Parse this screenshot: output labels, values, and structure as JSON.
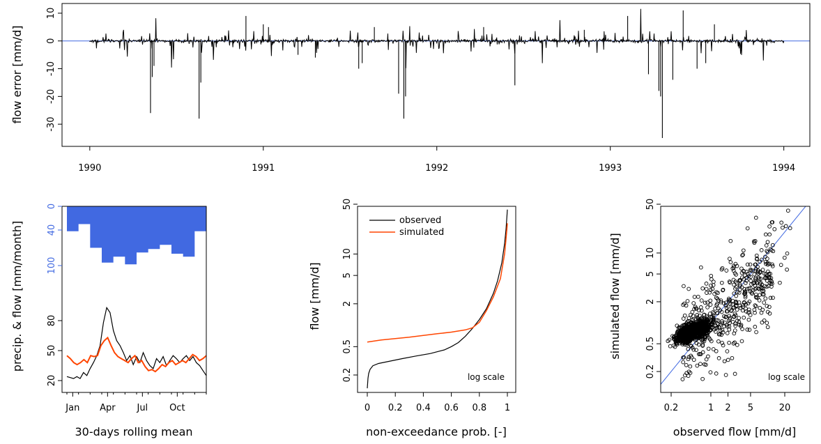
{
  "chart_data": [
    {
      "type": "line",
      "ylabel": "flow error [mm/d]",
      "xlim": [
        1989.84,
        1994.15
      ],
      "ylim": [
        -38,
        13.5
      ],
      "yticks": [
        10,
        0,
        -10,
        -20,
        -30
      ],
      "xticks": [
        "1990",
        "1991",
        "1992",
        "1993",
        "1994"
      ],
      "zero_line_color": "#4169E1",
      "line_color": "#000000",
      "spikes": [
        [
          1990.35,
          -26
        ],
        [
          1990.36,
          -13
        ],
        [
          1990.37,
          -9
        ],
        [
          1990.63,
          -28
        ],
        [
          1990.64,
          -15
        ],
        [
          1990.9,
          9
        ],
        [
          1991.0,
          6
        ],
        [
          1991.03,
          5
        ],
        [
          1991.2,
          -5
        ],
        [
          1991.3,
          -6
        ],
        [
          1991.55,
          -10
        ],
        [
          1991.57,
          -8
        ],
        [
          1991.64,
          5
        ],
        [
          1991.78,
          -19
        ],
        [
          1991.81,
          -28
        ],
        [
          1991.82,
          -20
        ],
        [
          1992.27,
          5
        ],
        [
          1992.45,
          -16
        ],
        [
          1992.85,
          4
        ],
        [
          1993.1,
          9
        ],
        [
          1993.22,
          -12
        ],
        [
          1993.28,
          -18
        ],
        [
          1993.29,
          -20
        ],
        [
          1993.3,
          -35
        ],
        [
          1993.36,
          -14
        ],
        [
          1993.42,
          11
        ],
        [
          1993.5,
          -10
        ],
        [
          1993.55,
          -8
        ],
        [
          1993.6,
          6
        ]
      ]
    },
    {
      "type": "area",
      "xlabel": "30-days rolling mean",
      "ylabel": "precip. & flow [mm/month]",
      "xticks": [
        "Jan",
        "Apr",
        "Jul",
        "Oct"
      ],
      "precip_ticks": [
        0,
        40,
        100
      ],
      "flow_ticks": [
        20,
        50,
        80
      ],
      "precip_color": "#4169E1",
      "precip_monthly": [
        42,
        30,
        70,
        95,
        85,
        98,
        78,
        72,
        65,
        80,
        85,
        42
      ],
      "series": [
        {
          "values": [
            24,
            23,
            22,
            24,
            22,
            28,
            25,
            32,
            38,
            45,
            55,
            78,
            93,
            88,
            70,
            60,
            55,
            48,
            40,
            45,
            36,
            44,
            38,
            48,
            40,
            35,
            32,
            42,
            38,
            44,
            35,
            40,
            45,
            42,
            38,
            42,
            45,
            40,
            44,
            38,
            35,
            30,
            25
          ],
          "color": "#000000"
        },
        {
          "values": [
            45,
            42,
            38,
            36,
            38,
            41,
            38,
            45,
            44,
            45,
            55,
            60,
            63,
            55,
            48,
            44,
            42,
            40,
            38,
            42,
            45,
            38,
            40,
            34,
            30,
            31,
            29,
            32,
            36,
            34,
            38,
            40,
            36,
            38,
            40,
            38,
            42,
            46,
            44,
            40,
            42,
            45
          ],
          "color": "#FF4500"
        }
      ]
    },
    {
      "type": "line",
      "xlabel": "non-exceedance prob. [-]",
      "ylabel": "flow [mm/d]",
      "xticks": [
        "0",
        "0.2",
        "0.4",
        "0.6",
        "0.8",
        "1"
      ],
      "yticks": [
        "0.2",
        "0.5",
        "2",
        "5",
        "10",
        "50"
      ],
      "note": "log scale",
      "series": [
        {
          "name": "observed",
          "color": "#000000",
          "x": [
            0,
            0.005,
            0.01,
            0.02,
            0.04,
            0.08,
            0.15,
            0.25,
            0.35,
            0.45,
            0.55,
            0.6,
            0.65,
            0.7,
            0.75,
            0.8,
            0.85,
            0.9,
            0.93,
            0.96,
            0.98,
            0.99,
            0.995,
            1
          ],
          "y": [
            0.13,
            0.18,
            0.21,
            0.24,
            0.27,
            0.29,
            0.31,
            0.34,
            0.37,
            0.4,
            0.45,
            0.5,
            0.57,
            0.7,
            0.9,
            1.2,
            1.7,
            2.8,
            4.2,
            7.5,
            14,
            22,
            30,
            42
          ]
        },
        {
          "name": "simulated",
          "color": "#FF4500",
          "x": [
            0,
            0.05,
            0.1,
            0.2,
            0.3,
            0.4,
            0.5,
            0.6,
            0.7,
            0.75,
            0.8,
            0.85,
            0.9,
            0.95,
            0.98,
            0.99,
            1
          ],
          "y": [
            0.58,
            0.6,
            0.62,
            0.65,
            0.68,
            0.72,
            0.76,
            0.8,
            0.86,
            0.92,
            1.1,
            1.6,
            2.5,
            4.5,
            10,
            16,
            27
          ]
        }
      ]
    },
    {
      "type": "scatter",
      "xlabel": "observed flow [mm/d]",
      "ylabel": "simulated flow [mm/d]",
      "xticks": [
        "0.2",
        "1",
        "2",
        "5",
        "20"
      ],
      "yticks": [
        "0.2",
        "0.5",
        "2",
        "5",
        "10",
        "50"
      ],
      "note": "log scale",
      "marker": "open-circle",
      "diagonal_color": "#4169E1",
      "xlim": [
        0.12,
        40
      ],
      "ylim": [
        0.12,
        50
      ]
    }
  ]
}
